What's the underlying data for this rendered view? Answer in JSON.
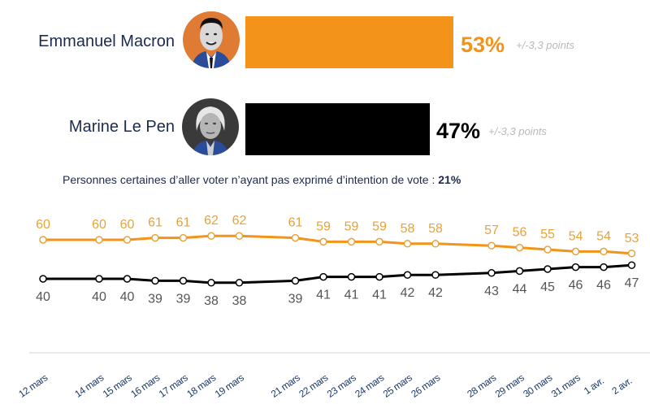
{
  "candidates": [
    {
      "name": "Emmanuel Macron",
      "percent_label": "53%",
      "value": 53,
      "margin_label": "+/-3,3 points",
      "color": "#f39319",
      "avatar_bg": "#e07b33",
      "avatar_icon": "portrait-macron"
    },
    {
      "name": "Marine Le Pen",
      "percent_label": "47%",
      "value": 47,
      "margin_label": "+/-3,3 points",
      "color": "#000000",
      "avatar_bg": "#3a3a3a",
      "avatar_icon": "portrait-le-pen"
    }
  ],
  "note": {
    "text": "Personnes certaines d’aller voter n’ayant pas exprimé d’intention de vote : ",
    "value": "21%"
  },
  "chart_data": {
    "type": "line",
    "title": "",
    "xlabel": "",
    "ylabel": "",
    "grid": false,
    "legend": "none",
    "x": [
      "12 mars",
      "14 mars",
      "15 mars",
      "16 mars",
      "17 mars",
      "18 mars",
      "19 mars",
      "21 mars",
      "22 mars",
      "23 mars",
      "24 mars",
      "25 mars",
      "26 mars",
      "28 mars",
      "29 mars",
      "30 mars",
      "31 mars",
      "1 avr.",
      "2 avr."
    ],
    "x_day_index": [
      0,
      2,
      3,
      4,
      5,
      6,
      7,
      9,
      10,
      11,
      12,
      13,
      14,
      16,
      17,
      18,
      19,
      20,
      21
    ],
    "series": [
      {
        "name": "Emmanuel Macron",
        "color": "#f39319",
        "label_color": "#e8a23a",
        "values": [
          60,
          60,
          60,
          61,
          61,
          62,
          62,
          61,
          59,
          59,
          59,
          58,
          58,
          57,
          56,
          55,
          54,
          54,
          53
        ]
      },
      {
        "name": "Marine Le Pen",
        "color": "#000000",
        "label_color": "#555555",
        "values": [
          40,
          40,
          40,
          39,
          39,
          38,
          38,
          39,
          41,
          41,
          41,
          42,
          42,
          43,
          44,
          45,
          46,
          46,
          47
        ]
      }
    ],
    "tick_label_color": "#1b3a6b"
  }
}
